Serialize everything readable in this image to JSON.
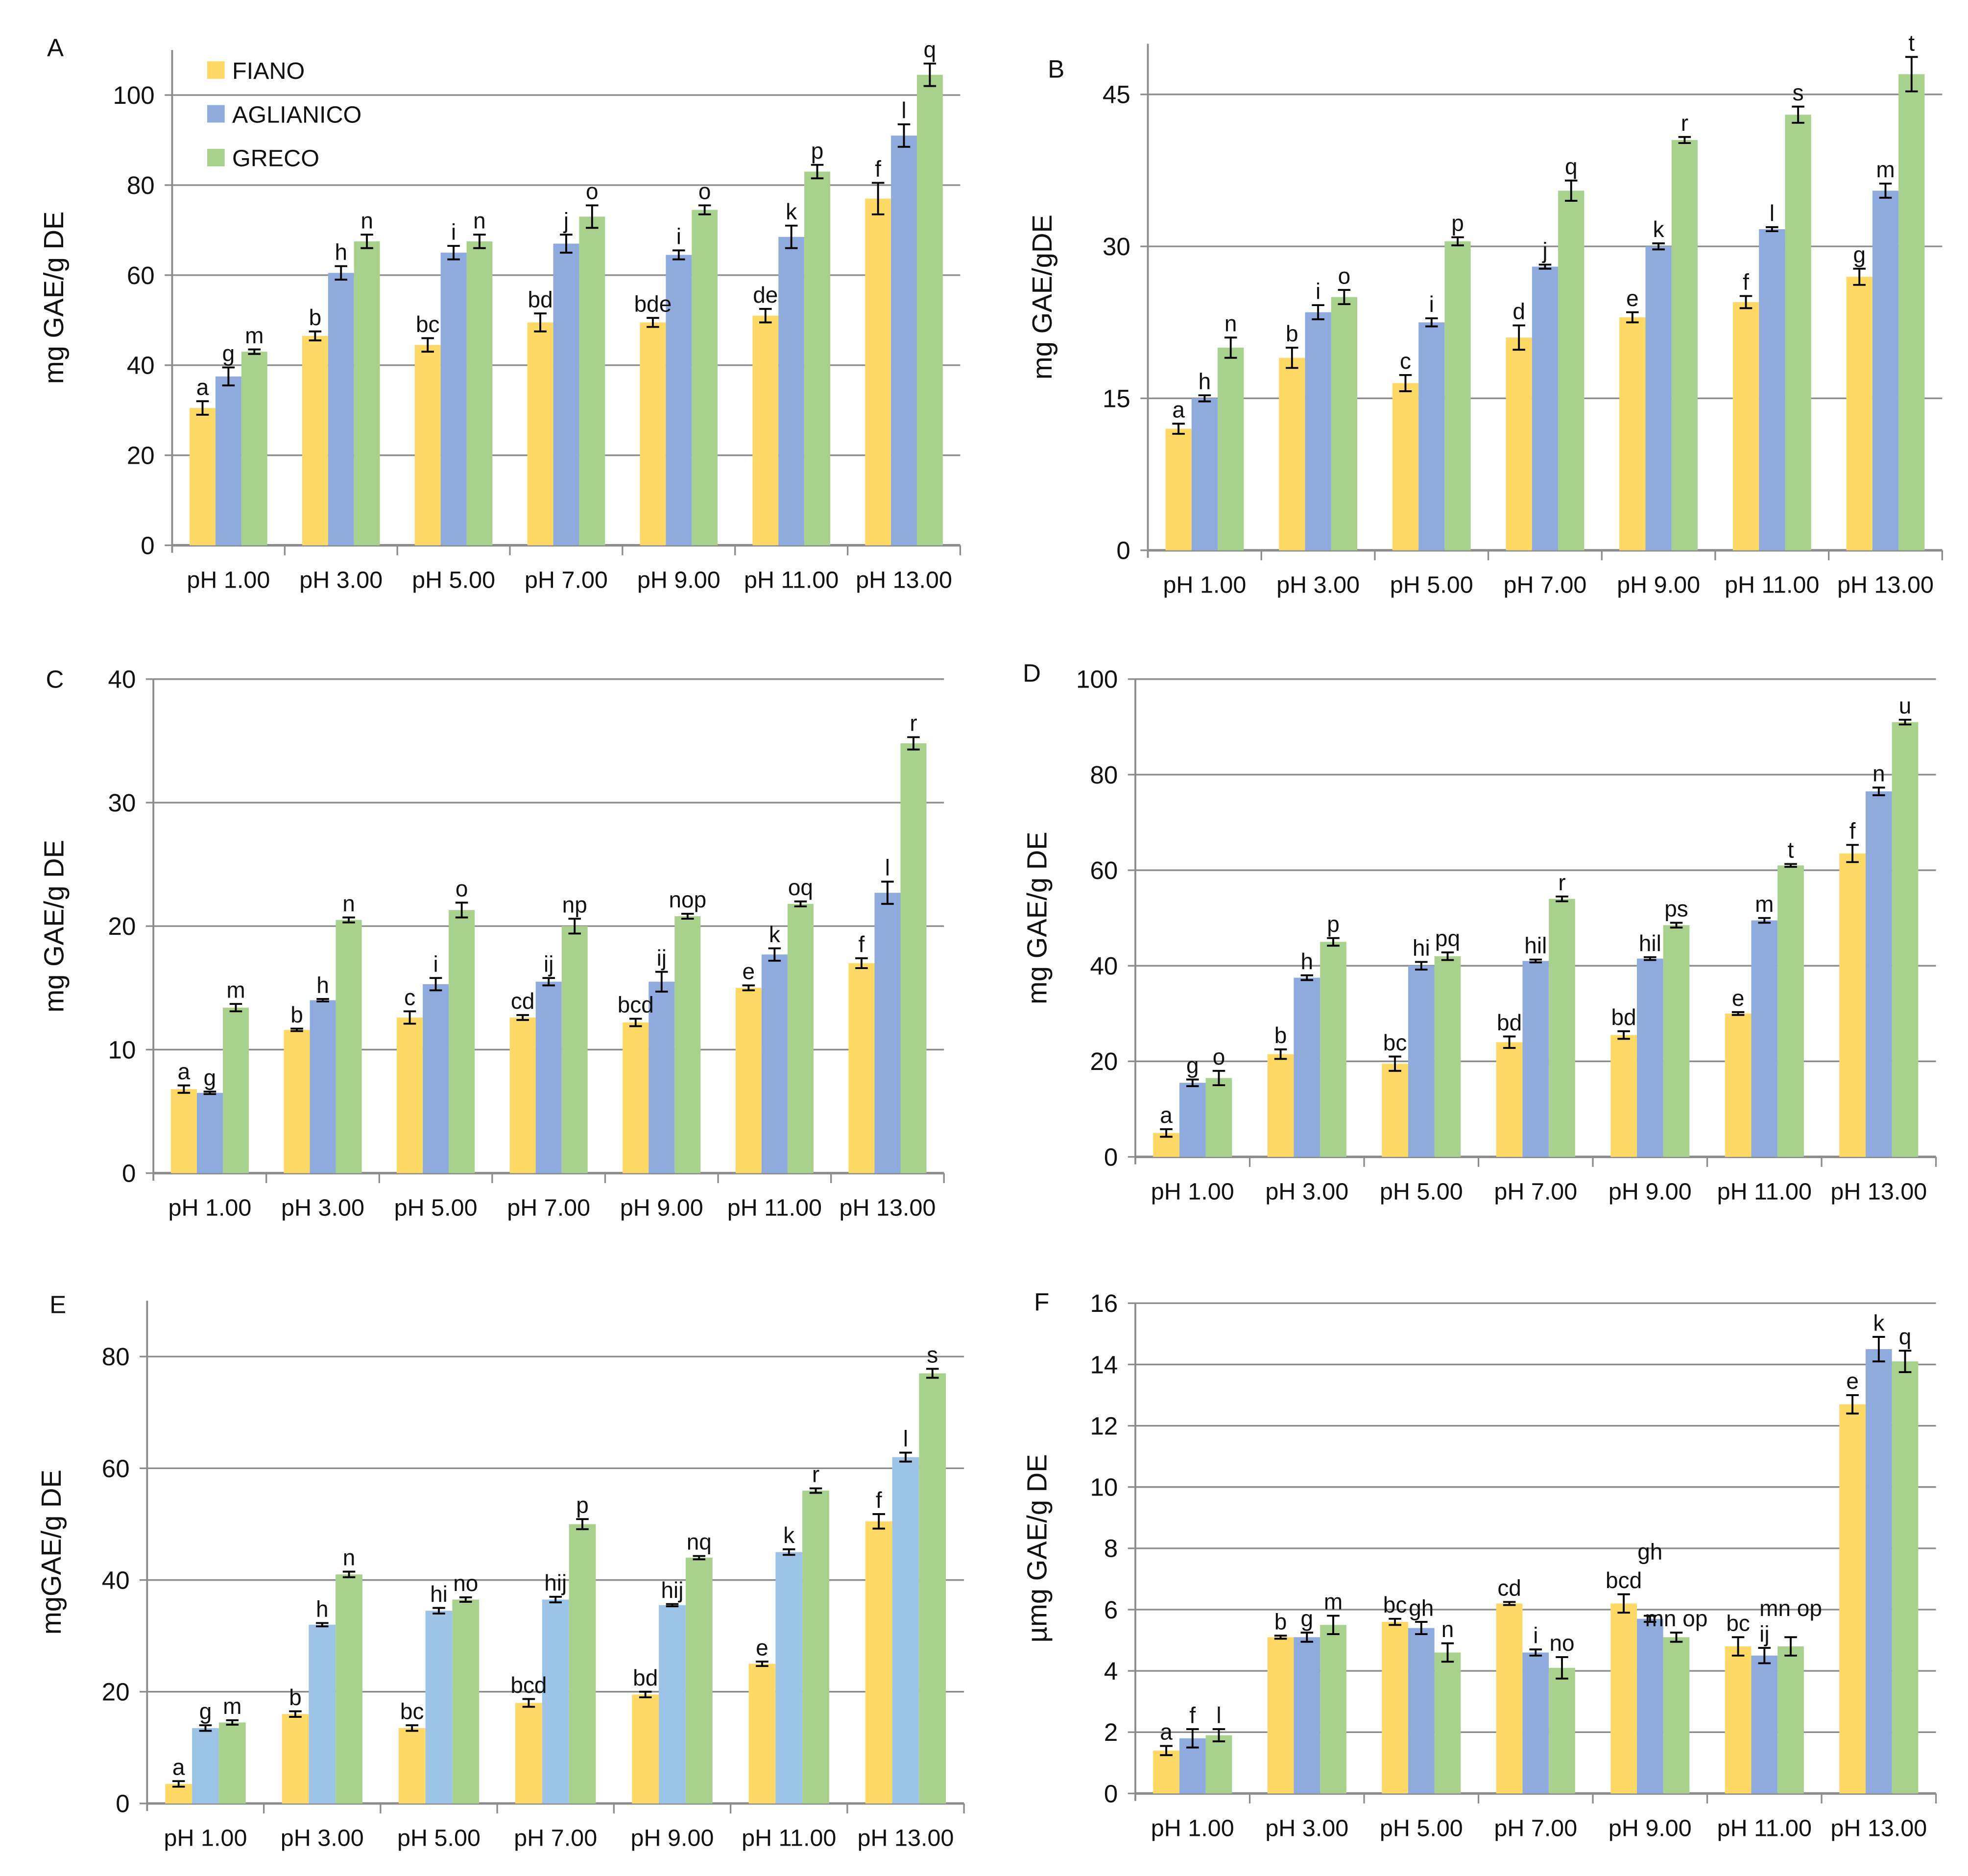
{
  "colors": {
    "fiano": "#FFD966",
    "aglianico": "#8FAADC",
    "aglianico_light": "#9DC3E6",
    "greco": "#A9D18E",
    "grid": "#8C8C8C"
  },
  "legend": [
    "FIANO",
    "AGLIANICO",
    "GRECO"
  ],
  "chart_data": [
    {
      "panel": "A",
      "type": "bar",
      "ylabel": "mg GAE/g DE",
      "ylim": [
        0,
        110
      ],
      "yticks": [
        0,
        20,
        40,
        60,
        80,
        100
      ],
      "legend": "top-left",
      "grid": true,
      "categories": [
        "pH 1.00",
        "pH 3.00",
        "pH 5.00",
        "pH 7.00",
        "pH 9.00",
        "pH 11.00",
        "pH 13.00"
      ],
      "series": [
        {
          "name": "FIANO",
          "values": [
            30.5,
            46.5,
            44.5,
            49.5,
            49.5,
            51,
            77
          ],
          "errors": [
            1.5,
            1,
            1.5,
            2,
            1,
            1.5,
            3.5
          ],
          "letters": [
            "a",
            "b",
            "bc",
            "bd",
            "bde",
            "de",
            "f"
          ]
        },
        {
          "name": "AGLIANICO",
          "values": [
            37.5,
            60.5,
            65,
            67,
            64.5,
            68.5,
            91
          ],
          "errors": [
            2,
            1.5,
            1.5,
            2,
            1,
            2.5,
            2.5
          ],
          "letters": [
            "g",
            "h",
            "i",
            "j",
            "i",
            "k",
            "l"
          ]
        },
        {
          "name": "GRECO",
          "values": [
            43,
            67.5,
            67.5,
            73,
            74.5,
            83,
            104.5
          ],
          "errors": [
            0.5,
            1.5,
            1.5,
            2.5,
            1,
            1.5,
            2.5
          ],
          "letters": [
            "m",
            "n",
            "n",
            "o",
            "o",
            "p",
            "q"
          ]
        }
      ]
    },
    {
      "panel": "B",
      "type": "bar",
      "ylabel": "mg GAE/gDE",
      "ylim": [
        0,
        50
      ],
      "yticks": [
        0,
        15,
        30,
        45
      ],
      "grid": true,
      "categories": [
        "pH 1.00",
        "pH 3.00",
        "pH 5.00",
        "pH 7.00",
        "pH 9.00",
        "pH 11.00",
        "pH 13.00"
      ],
      "series": [
        {
          "name": "FIANO",
          "values": [
            12,
            19,
            16.5,
            21,
            23,
            24.5,
            27
          ],
          "errors": [
            0.5,
            1,
            0.8,
            1.2,
            0.5,
            0.6,
            0.8
          ],
          "letters": [
            "a",
            "b",
            "c",
            "d",
            "e",
            "f",
            "g"
          ]
        },
        {
          "name": "AGLIANICO",
          "values": [
            15,
            23.5,
            22.5,
            28,
            30,
            31.7,
            35.5
          ],
          "errors": [
            0.3,
            0.7,
            0.4,
            0.2,
            0.3,
            0.2,
            0.7
          ],
          "letters": [
            "h",
            "i",
            "i",
            "j",
            "k",
            "l",
            "m"
          ]
        },
        {
          "name": "GRECO",
          "values": [
            20,
            25,
            30.5,
            35.5,
            40.5,
            43,
            47
          ],
          "errors": [
            1,
            0.7,
            0.4,
            1,
            0.3,
            0.8,
            1.7
          ],
          "letters": [
            "n",
            "o",
            "p",
            "q",
            "r",
            "s",
            "t"
          ]
        }
      ]
    },
    {
      "panel": "C",
      "type": "bar",
      "ylabel": "mg GAE/g DE",
      "ylim": [
        0,
        40
      ],
      "yticks": [
        0,
        10,
        20,
        30,
        40
      ],
      "grid": true,
      "categories": [
        "pH 1.00",
        "pH 3.00",
        "pH 5.00",
        "pH 7.00",
        "pH 9.00",
        "pH 11.00",
        "pH 13.00"
      ],
      "series": [
        {
          "name": "FIANO",
          "values": [
            6.8,
            11.6,
            12.6,
            12.6,
            12.2,
            15,
            17
          ],
          "errors": [
            0.3,
            0.1,
            0.5,
            0.2,
            0.3,
            0.2,
            0.4
          ],
          "letters": [
            "a",
            "b",
            "c",
            "cd",
            "bcd",
            "e",
            "f"
          ]
        },
        {
          "name": "AGLIANICO",
          "values": [
            6.5,
            14,
            15.3,
            15.5,
            15.5,
            17.7,
            22.7
          ],
          "errors": [
            0.1,
            0.1,
            0.5,
            0.3,
            0.8,
            0.5,
            0.9
          ],
          "letters": [
            "g",
            "h",
            "i",
            "ij",
            "ij",
            "k",
            "l"
          ]
        },
        {
          "name": "GRECO",
          "values": [
            13.4,
            20.5,
            21.3,
            20,
            20.8,
            21.8,
            34.8
          ],
          "errors": [
            0.3,
            0.2,
            0.6,
            0.6,
            0.2,
            0.2,
            0.5
          ],
          "letters": [
            "m",
            "n",
            "o",
            "np",
            "nop",
            "oq",
            "r"
          ]
        }
      ]
    },
    {
      "panel": "D",
      "type": "bar",
      "ylabel": "mg GAE/g DE",
      "ylim": [
        0,
        100
      ],
      "yticks": [
        0,
        20,
        40,
        60,
        80,
        100
      ],
      "grid": true,
      "categories": [
        "pH 1.00",
        "pH 3.00",
        "pH 5.00",
        "pH 7.00",
        "pH 9.00",
        "pH 11.00",
        "pH 13.00"
      ],
      "series": [
        {
          "name": "FIANO",
          "values": [
            5,
            21.5,
            19.5,
            24,
            25.5,
            30,
            63.5
          ],
          "errors": [
            0.8,
            1,
            1.5,
            1.2,
            0.8,
            0.3,
            1.8
          ],
          "letters": [
            "a",
            "b",
            "bc",
            "bd",
            "bd",
            "e",
            "f"
          ]
        },
        {
          "name": "AGLIANICO",
          "values": [
            15.5,
            37.5,
            40,
            41,
            41.5,
            49.5,
            76.5
          ],
          "errors": [
            0.7,
            0.5,
            0.8,
            0.3,
            0.3,
            0.5,
            0.8
          ],
          "letters": [
            "g",
            "h",
            "hi",
            "hil",
            "hil",
            "m",
            "n"
          ]
        },
        {
          "name": "GRECO",
          "values": [
            16.5,
            45,
            42,
            54,
            48.5,
            61,
            91
          ],
          "errors": [
            1.5,
            0.8,
            0.8,
            0.5,
            0.5,
            0.3,
            0.5
          ],
          "letters": [
            "o",
            "p",
            "pq",
            "r",
            "ps",
            "t",
            "u"
          ]
        }
      ]
    },
    {
      "panel": "E",
      "type": "bar",
      "ylabel": "mgGAE/g DE",
      "ylim": [
        0,
        90
      ],
      "yticks": [
        0,
        20,
        40,
        60,
        80
      ],
      "grid": true,
      "categories": [
        "pH 1.00",
        "pH 3.00",
        "pH 5.00",
        "pH 7.00",
        "pH 9.00",
        "pH 11.00",
        "pH 13.00"
      ],
      "series": [
        {
          "name": "FIANO",
          "values": [
            3.5,
            16,
            13.5,
            18,
            19.5,
            25,
            50.5
          ],
          "errors": [
            0.5,
            0.5,
            0.5,
            0.7,
            0.5,
            0.4,
            1.3
          ],
          "letters": [
            "a",
            "b",
            "bc",
            "bcd",
            "bd",
            "e",
            "f"
          ]
        },
        {
          "name": "AGLIANICO",
          "values": [
            13.5,
            32,
            34.5,
            36.5,
            35.5,
            45,
            62
          ],
          "errors": [
            0.5,
            0.3,
            0.5,
            0.5,
            0.2,
            0.5,
            0.8
          ],
          "letters": [
            "g",
            "h",
            "hi",
            "hij",
            "hij",
            "k",
            "l"
          ]
        },
        {
          "name": "GRECO",
          "values": [
            14.5,
            41,
            36.5,
            50,
            44,
            56,
            77
          ],
          "errors": [
            0.4,
            0.5,
            0.4,
            0.9,
            0.3,
            0.4,
            0.8
          ],
          "letters": [
            "m",
            "n",
            "no",
            "p",
            "nq",
            "r",
            "s"
          ]
        }
      ]
    },
    {
      "panel": "F",
      "type": "bar",
      "ylabel": "µmg GAE/g DE",
      "ylim": [
        0,
        16
      ],
      "yticks": [
        0,
        2,
        4,
        6,
        8,
        10,
        12,
        14,
        16
      ],
      "grid": true,
      "categories": [
        "pH 1.00",
        "pH 3.00",
        "pH 5.00",
        "pH 7.00",
        "pH 9.00",
        "pH 11.00",
        "pH 13.00"
      ],
      "series": [
        {
          "name": "FIANO",
          "values": [
            1.4,
            5.1,
            5.6,
            6.2,
            6.2,
            4.8,
            12.7
          ],
          "errors": [
            0.15,
            0.05,
            0.1,
            0.05,
            0.3,
            0.3,
            0.3
          ],
          "letters": [
            "a",
            "b",
            "bc",
            "cd",
            "bcd",
            "bc",
            "e"
          ]
        },
        {
          "name": "AGLIANICO",
          "values": [
            1.8,
            5.1,
            5.4,
            4.6,
            5.7,
            4.5,
            14.5
          ],
          "errors": [
            0.3,
            0.15,
            0.2,
            0.1,
            0.1,
            0.25,
            0.4
          ],
          "letters": [
            "f",
            "g",
            "gh",
            "i",
            "gh",
            "ij",
            "k"
          ]
        },
        {
          "name": "GRECO",
          "values": [
            1.9,
            5.5,
            4.6,
            4.1,
            5.1,
            4.8,
            14.1
          ],
          "errors": [
            0.2,
            0.3,
            0.3,
            0.35,
            0.15,
            0.3,
            0.35
          ],
          "letters": [
            "l",
            "m",
            "n",
            "no",
            "mn op",
            "mn op",
            "q"
          ]
        }
      ]
    }
  ]
}
